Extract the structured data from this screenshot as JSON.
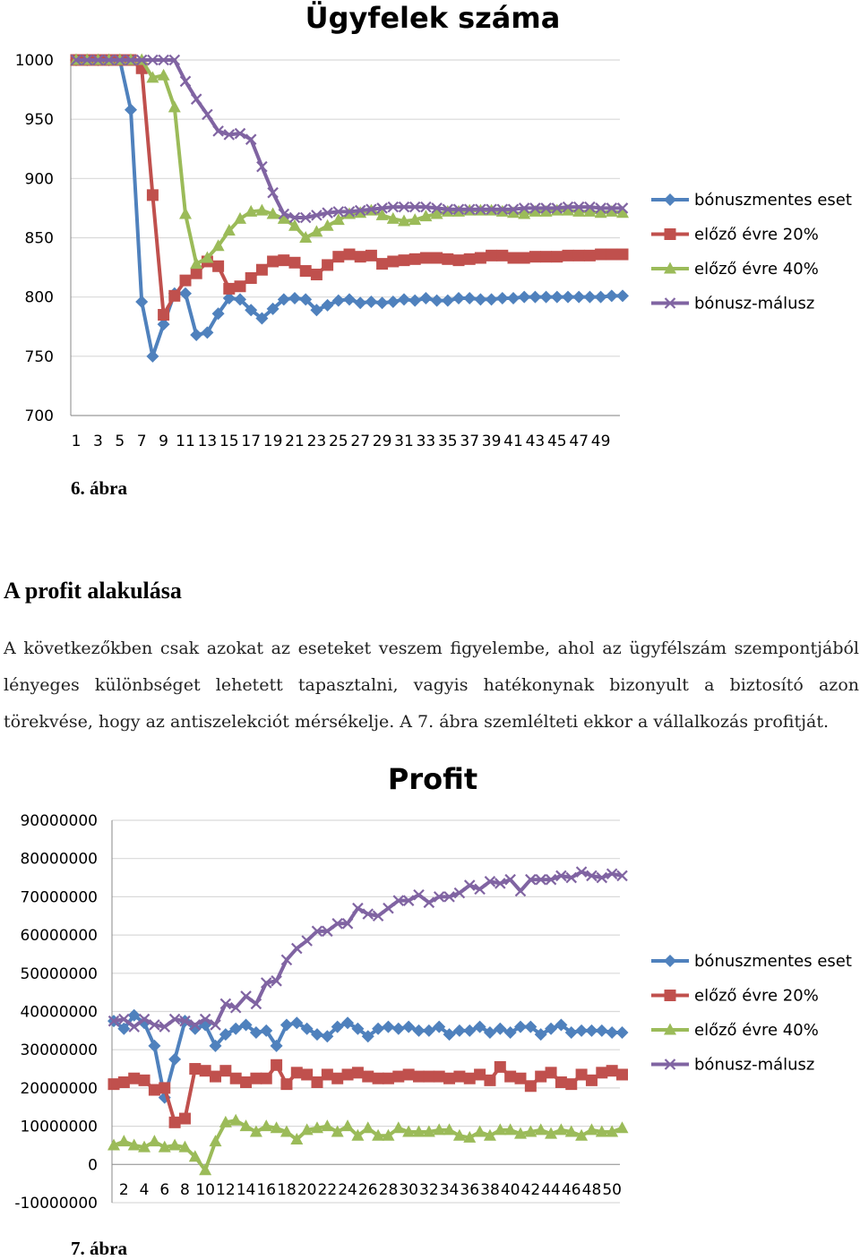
{
  "chart_data": [
    {
      "type": "line",
      "title": "Ügyfelek száma",
      "ylim": [
        700,
        1000
      ],
      "yticks": [
        700,
        750,
        800,
        850,
        900,
        950,
        1000
      ],
      "grid": true,
      "legend": "right",
      "x_start": 1,
      "xtick_labels": [
        "1",
        "3",
        "5",
        "7",
        "9",
        "11",
        "13",
        "15",
        "17",
        "19",
        "21",
        "23",
        "25",
        "27",
        "29",
        "31",
        "33",
        "35",
        "37",
        "39",
        "41",
        "43",
        "45",
        "47",
        "49"
      ],
      "series": [
        {
          "name": "bónuszmentes eset",
          "color": "#4f81bd",
          "marker": "diamond",
          "values": [
            1000,
            1000,
            1000,
            1000,
            1000,
            958,
            796,
            750,
            777,
            803,
            803,
            768,
            770,
            786,
            799,
            798,
            789,
            782,
            790,
            798,
            799,
            798,
            789,
            793,
            797,
            798,
            795,
            796,
            795,
            796,
            798,
            797,
            799,
            797,
            797,
            799,
            799,
            798,
            798,
            799,
            799,
            800,
            800,
            800,
            800,
            800,
            800,
            800,
            800,
            801,
            801
          ]
        },
        {
          "name": "előző évre 20%",
          "color": "#c0504d",
          "marker": "square",
          "values": [
            1000,
            1000,
            1000,
            1000,
            1000,
            1000,
            993,
            886,
            785,
            801,
            814,
            820,
            830,
            826,
            807,
            809,
            816,
            823,
            830,
            831,
            829,
            822,
            819,
            827,
            834,
            836,
            834,
            835,
            828,
            830,
            831,
            832,
            833,
            833,
            832,
            831,
            832,
            833,
            835,
            835,
            833,
            833,
            834,
            834,
            834,
            835,
            835,
            835,
            836,
            836,
            836
          ]
        },
        {
          "name": "előző évre 40%",
          "color": "#9bbb59",
          "marker": "triangle",
          "values": [
            1000,
            1000,
            1000,
            1000,
            1000,
            1000,
            1000,
            985,
            987,
            960,
            870,
            828,
            833,
            843,
            856,
            866,
            872,
            873,
            870,
            866,
            860,
            850,
            855,
            860,
            865,
            870,
            871,
            873,
            869,
            866,
            864,
            865,
            868,
            870,
            872,
            872,
            873,
            873,
            873,
            872,
            871,
            870,
            872,
            872,
            873,
            873,
            872,
            872,
            871,
            872,
            871
          ]
        },
        {
          "name": "bónusz-málusz",
          "color": "#8064a2",
          "marker": "x",
          "values": [
            1000,
            1000,
            1000,
            1000,
            1000,
            1000,
            1000,
            1000,
            1000,
            1000,
            982,
            967,
            954,
            940,
            937,
            938,
            933,
            910,
            888,
            870,
            867,
            867,
            869,
            871,
            872,
            872,
            873,
            874,
            875,
            876,
            876,
            876,
            876,
            875,
            874,
            874,
            874,
            874,
            874,
            874,
            874,
            875,
            875,
            875,
            875,
            876,
            876,
            876,
            875,
            875,
            875
          ]
        }
      ]
    },
    {
      "type": "line",
      "title": "Profit",
      "ylim": [
        -10000000,
        90000000
      ],
      "yticks": [
        -10000000,
        0,
        10000000,
        20000000,
        30000000,
        40000000,
        50000000,
        60000000,
        70000000,
        80000000,
        90000000
      ],
      "grid": true,
      "legend": "right",
      "x_start": 1,
      "xtick_labels": [
        "2",
        "4",
        "6",
        "8",
        "10",
        "12",
        "14",
        "16",
        "18",
        "20",
        "22",
        "24",
        "26",
        "28",
        "30",
        "32",
        "34",
        "36",
        "38",
        "40",
        "42",
        "44",
        "46",
        "48",
        "50"
      ],
      "series": [
        {
          "name": "bónuszmentes eset",
          "color": "#4f81bd",
          "marker": "diamond",
          "values": [
            37500000,
            35500000,
            39000000,
            37000000,
            31000000,
            17500000,
            27500000,
            37500000,
            35500000,
            36500000,
            31000000,
            34000000,
            35500000,
            36500000,
            34500000,
            35000000,
            31000000,
            36500000,
            37000000,
            35500000,
            34000000,
            33500000,
            36000000,
            37000000,
            35500000,
            33500000,
            35500000,
            36000000,
            35500000,
            36000000,
            35000000,
            35000000,
            36000000,
            34000000,
            35000000,
            35000000,
            36000000,
            34500000,
            35500000,
            34500000,
            36000000,
            36000000,
            34000000,
            35500000,
            36500000,
            34500000,
            35000000,
            35000000,
            35000000,
            34500000,
            34500000
          ]
        },
        {
          "name": "előző évre 20%",
          "color": "#c0504d",
          "marker": "square",
          "values": [
            21000000,
            21500000,
            22500000,
            22000000,
            19500000,
            20000000,
            11000000,
            12000000,
            25000000,
            24500000,
            23000000,
            24500000,
            22500000,
            21500000,
            22500000,
            22500000,
            26000000,
            21000000,
            24000000,
            23500000,
            21500000,
            23500000,
            22500000,
            23500000,
            24000000,
            23000000,
            22500000,
            22500000,
            23000000,
            23500000,
            23000000,
            23000000,
            23000000,
            22500000,
            23000000,
            22500000,
            23500000,
            22000000,
            25500000,
            23000000,
            22500000,
            20500000,
            23000000,
            24000000,
            21500000,
            21000000,
            23500000,
            22000000,
            24000000,
            24500000,
            23500000
          ]
        },
        {
          "name": "előző évre 40%",
          "color": "#9bbb59",
          "marker": "triangle",
          "values": [
            5000000,
            6000000,
            5000000,
            4500000,
            6000000,
            4500000,
            5000000,
            4500000,
            2000000,
            -1500000,
            6000000,
            11000000,
            11500000,
            10000000,
            8500000,
            10000000,
            9500000,
            8500000,
            6500000,
            9000000,
            9500000,
            10000000,
            8500000,
            10000000,
            7500000,
            9500000,
            7500000,
            7500000,
            9500000,
            8500000,
            8500000,
            8500000,
            9000000,
            9000000,
            7500000,
            7000000,
            8500000,
            7500000,
            9000000,
            9000000,
            8000000,
            8500000,
            9000000,
            8000000,
            9000000,
            8500000,
            7500000,
            9000000,
            8500000,
            8500000,
            9500000
          ]
        },
        {
          "name": "bónusz-málusz",
          "color": "#8064a2",
          "marker": "x",
          "values": [
            37500000,
            38000000,
            36000000,
            38000000,
            36500000,
            36000000,
            38000000,
            37500000,
            36500000,
            38000000,
            36500000,
            42000000,
            41000000,
            44000000,
            42000000,
            47500000,
            48000000,
            53500000,
            56500000,
            58500000,
            61000000,
            61000000,
            63000000,
            63000000,
            67000000,
            65500000,
            65000000,
            67000000,
            69000000,
            69000000,
            70500000,
            68500000,
            70000000,
            70000000,
            71000000,
            73000000,
            72000000,
            74000000,
            73500000,
            74500000,
            71500000,
            74500000,
            74500000,
            74500000,
            75500000,
            75000000,
            76500000,
            75500000,
            75000000,
            76000000,
            75500000
          ]
        }
      ]
    }
  ],
  "captions": {
    "fig6": "6. ábra",
    "fig7": "7. ábra"
  },
  "section": {
    "title": "A profit alakulása",
    "lines": [
      "A következőkben csak azokat az eseteket veszem figyelembe, ahol az ügyfélszám szempontjából",
      "lényeges különbséget lehetett tapasztalni, vagyis hatékonynak bizonyult a biztosító azon",
      "törekvése, hogy az antiszelekciót mérsékelje. A 7. ábra szemlélteti ekkor a vállalkozás profitját."
    ]
  }
}
